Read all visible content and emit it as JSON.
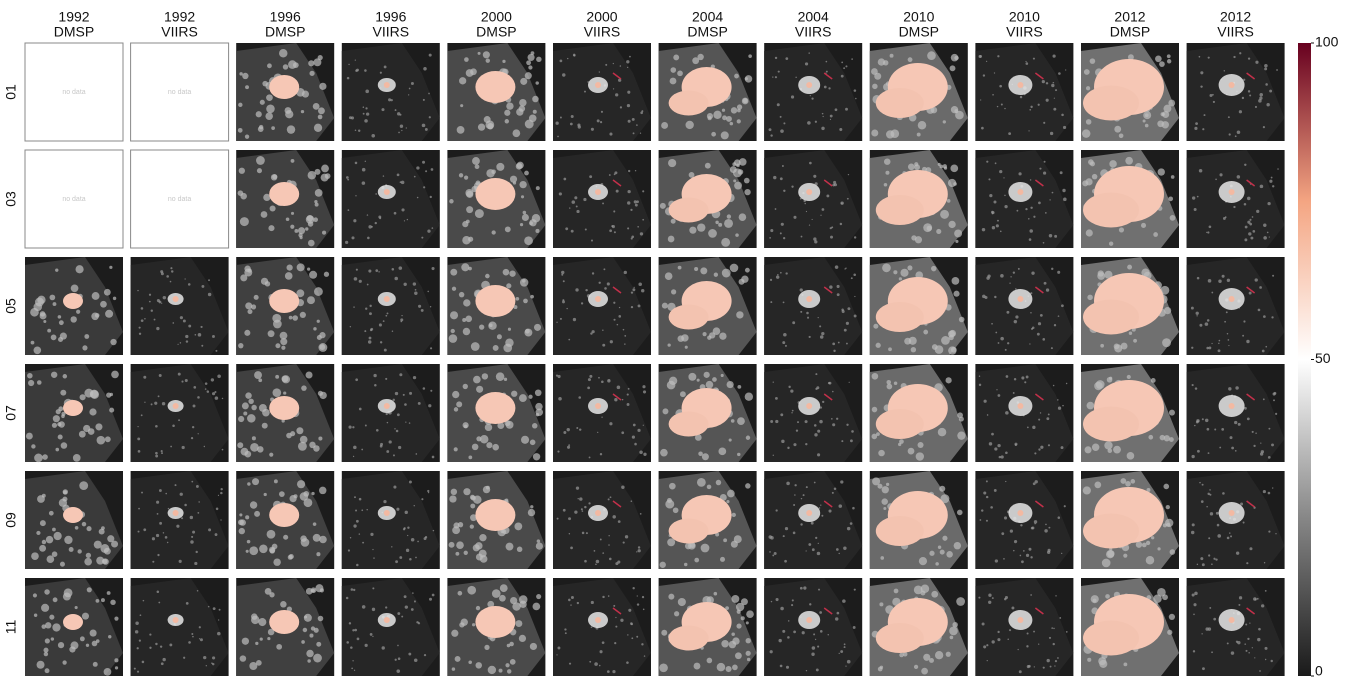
{
  "chart_data": {
    "type": "image-grid",
    "columns": [
      {
        "year": "1992",
        "sensor": "DMSP"
      },
      {
        "year": "1992",
        "sensor": "VIIRS"
      },
      {
        "year": "1996",
        "sensor": "DMSP"
      },
      {
        "year": "1996",
        "sensor": "VIIRS"
      },
      {
        "year": "2000",
        "sensor": "DMSP"
      },
      {
        "year": "2000",
        "sensor": "VIIRS"
      },
      {
        "year": "2004",
        "sensor": "DMSP"
      },
      {
        "year": "2004",
        "sensor": "VIIRS"
      },
      {
        "year": "2010",
        "sensor": "DMSP"
      },
      {
        "year": "2010",
        "sensor": "VIIRS"
      },
      {
        "year": "2012",
        "sensor": "DMSP"
      },
      {
        "year": "2012",
        "sensor": "VIIRS"
      }
    ],
    "rows": [
      "01",
      "03",
      "05",
      "07",
      "09",
      "11"
    ],
    "cells": [
      [
        "no data",
        "no data",
        null,
        null,
        null,
        null,
        null,
        null,
        null,
        null,
        null,
        null
      ],
      [
        "no data",
        "no data",
        null,
        null,
        null,
        null,
        null,
        null,
        null,
        null,
        null,
        null
      ],
      [
        null,
        null,
        null,
        null,
        null,
        null,
        null,
        null,
        null,
        null,
        null,
        null
      ],
      [
        null,
        null,
        null,
        null,
        null,
        null,
        null,
        null,
        null,
        null,
        null,
        null
      ],
      [
        null,
        null,
        null,
        null,
        null,
        null,
        null,
        null,
        null,
        null,
        null,
        null
      ],
      [
        null,
        null,
        null,
        null,
        null,
        null,
        null,
        null,
        null,
        null,
        null,
        null
      ]
    ],
    "colorbar": {
      "lim": [
        0,
        100
      ],
      "ticks": [
        0,
        50,
        100
      ],
      "colors": [
        "#1a1a1a",
        "#878787",
        "#ffffff",
        "#f4a582",
        "#67001f"
      ]
    }
  }
}
